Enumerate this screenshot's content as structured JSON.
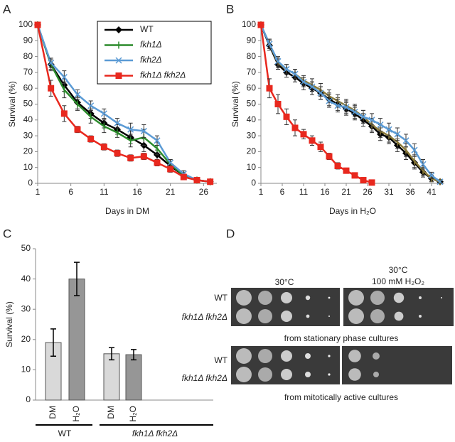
{
  "chart_data": [
    {
      "type": "line",
      "label": "A",
      "xlabel": "Days in DM",
      "ylabel": "Survival (%)",
      "xlim": [
        1,
        28
      ],
      "xticks": [
        1,
        6,
        11,
        16,
        21,
        26
      ],
      "ylim": [
        0,
        100
      ],
      "yticks": [
        0,
        10,
        20,
        30,
        40,
        50,
        60,
        70,
        80,
        90,
        100
      ],
      "legend": "top-right",
      "x": [
        1,
        3,
        5,
        7,
        9,
        11,
        13,
        15,
        17,
        19,
        21,
        23,
        25,
        27
      ],
      "series": [
        {
          "name": "WT",
          "color": "#000000",
          "marker": "diamond",
          "values": [
            100,
            75,
            62,
            51,
            44,
            38,
            34,
            29,
            24,
            18,
            11,
            5,
            2,
            1
          ],
          "errors": [
            null,
            3,
            4,
            4,
            3,
            3,
            3,
            4,
            4,
            3,
            3,
            2,
            1,
            null
          ]
        },
        {
          "name": "fkh1Δ",
          "color": "#2a8a2a",
          "marker": "plus",
          "values": [
            100,
            75,
            59,
            50,
            42,
            36,
            32,
            27,
            29,
            22,
            12,
            5,
            2,
            1
          ],
          "errors": [
            null,
            4,
            5,
            4,
            4,
            4,
            3,
            4,
            5,
            4,
            3,
            2,
            1,
            null
          ]
        },
        {
          "name": "fkh2Δ",
          "color": "#5b9bd5",
          "marker": "cross",
          "values": [
            100,
            76,
            67,
            56,
            49,
            44,
            38,
            34,
            33,
            27,
            13,
            6,
            2,
            1
          ],
          "errors": [
            null,
            3,
            4,
            3,
            3,
            3,
            3,
            4,
            4,
            3,
            2,
            2,
            1,
            null
          ]
        },
        {
          "name": "fkh1Δ fkh2Δ",
          "color": "#e8281e",
          "marker": "square",
          "values": [
            100,
            60,
            44,
            34,
            28,
            23,
            19,
            16,
            17,
            13,
            9,
            4,
            2,
            1
          ],
          "errors": [
            null,
            5,
            5,
            2,
            2,
            2,
            2,
            2,
            2,
            2,
            2,
            1,
            1,
            null
          ]
        }
      ]
    },
    {
      "type": "line",
      "label": "B",
      "xlabel": "Days in H₂O",
      "ylabel": "Survival (%)",
      "xlim": [
        1,
        44
      ],
      "xticks": [
        1,
        6,
        11,
        16,
        21,
        26,
        31,
        36,
        41
      ],
      "ylim": [
        0,
        100
      ],
      "yticks": [
        0,
        10,
        20,
        30,
        40,
        50,
        60,
        70,
        80,
        90,
        100
      ],
      "x": [
        1,
        3,
        5,
        7,
        9,
        11,
        13,
        15,
        17,
        19,
        21,
        23,
        25,
        27,
        29,
        31,
        33,
        35,
        37,
        39,
        41,
        43
      ],
      "series": [
        {
          "color": "#000000",
          "marker": "diamond",
          "values": [
            100,
            87,
            75,
            70,
            67,
            63,
            60,
            57,
            53,
            50,
            47,
            44,
            40,
            36,
            31,
            29,
            24,
            19,
            13,
            7,
            3,
            1
          ],
          "errors": [
            null,
            3,
            3,
            3,
            3,
            4,
            4,
            4,
            4,
            4,
            4,
            4,
            4,
            4,
            4,
            4,
            4,
            4,
            4,
            3,
            2,
            null
          ]
        },
        {
          "color": "#8a7a3a",
          "marker": "plus",
          "values": [
            100,
            88,
            76,
            72,
            69,
            65,
            62,
            59,
            55,
            52,
            49,
            46,
            42,
            37,
            33,
            30,
            26,
            21,
            14,
            8,
            3,
            1
          ],
          "errors": [
            null,
            3,
            3,
            3,
            3,
            3,
            4,
            4,
            4,
            4,
            4,
            4,
            4,
            4,
            4,
            4,
            4,
            4,
            4,
            3,
            2,
            null
          ]
        },
        {
          "color": "#5b9bd5",
          "marker": "cross",
          "values": [
            100,
            88,
            77,
            72,
            69,
            64,
            61,
            57,
            52,
            49,
            48,
            45,
            42,
            40,
            37,
            34,
            31,
            27,
            21,
            12,
            5,
            1
          ],
          "errors": [
            null,
            3,
            3,
            3,
            3,
            3,
            3,
            4,
            4,
            4,
            4,
            4,
            4,
            4,
            4,
            4,
            4,
            4,
            4,
            3,
            2,
            null
          ]
        },
        {
          "color": "#e8281e",
          "marker": "square",
          "values": [
            100,
            60,
            50,
            42,
            35,
            31,
            27,
            23,
            17,
            11,
            8,
            5,
            2,
            0.5,
            null,
            null,
            null,
            null,
            null,
            null,
            null,
            null
          ],
          "errors": [
            null,
            6,
            6,
            5,
            5,
            3,
            3,
            3,
            2,
            2,
            1,
            1,
            1,
            null,
            null,
            null,
            null,
            null,
            null,
            null,
            null,
            null
          ]
        }
      ]
    },
    {
      "type": "bar",
      "label": "C",
      "ylabel": "Survival (%)",
      "ylim": [
        0,
        50
      ],
      "yticks": [
        0,
        10,
        20,
        30,
        40,
        50
      ],
      "categories": [
        "DM",
        "H₂O",
        "DM",
        "H₂O"
      ],
      "groups": [
        "WT",
        "fkh1Δ fkh2Δ"
      ],
      "values": [
        19,
        40,
        15.3,
        15
      ],
      "errors": [
        4.5,
        5.5,
        2,
        1.7
      ],
      "colors": [
        "#d9d9d9",
        "#969696",
        "#d9d9d9",
        "#969696"
      ]
    }
  ],
  "panel_d": {
    "label": "D",
    "conditions": [
      {
        "temp": "30°C"
      },
      {
        "temp": "30°C",
        "treatment": "100 mM H₂O₂"
      }
    ],
    "strains": [
      "WT",
      "fkh1Δ fkh2Δ"
    ],
    "captions": [
      "from stationary phase cultures",
      "from mitotically active cultures"
    ]
  }
}
